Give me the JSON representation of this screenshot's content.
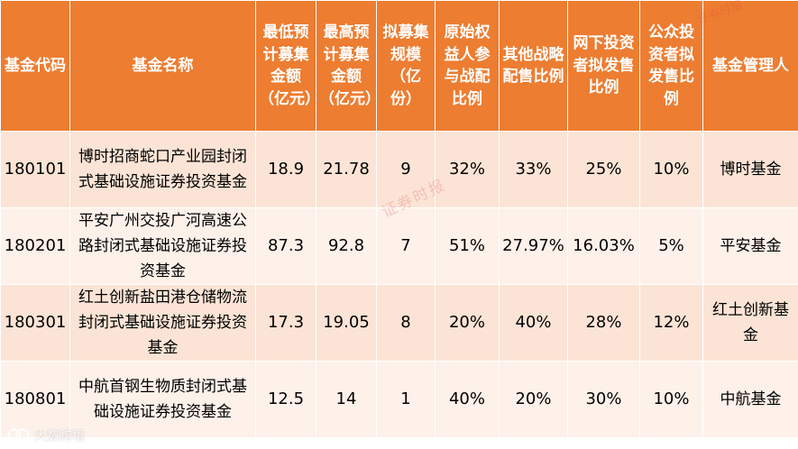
{
  "headers": {
    "code": "基金代码",
    "name": "基金名称",
    "min_raise": "最低预计募集金额（亿元）",
    "max_raise": "最高预计募集金额（亿元）",
    "planned_scale": "拟募集规模（亿份）",
    "original_holder": "原始权益人参与战配比例",
    "other_strategic": "其他战略配售比例",
    "offline": "网下投资者拟发售比例",
    "public": "公众投资者拟发售比例",
    "manager": "基金管理人"
  },
  "rows": [
    {
      "code": "180101",
      "name": "博时招商蛇口产业园封闭式基础设施证券投资基金",
      "min_raise": "18.9",
      "max_raise": "21.78",
      "planned_scale": "9",
      "original_holder": "32%",
      "other_strategic": "33%",
      "offline": "25%",
      "public": "10%",
      "manager": "博时基金"
    },
    {
      "code": "180201",
      "name": "平安广州交投广河高速公路封闭式基础设施证券投资基金",
      "min_raise": "87.3",
      "max_raise": "92.8",
      "planned_scale": "7",
      "original_holder": "51%",
      "other_strategic": "27.97%",
      "offline": "16.03%",
      "public": "5%",
      "manager": "平安基金"
    },
    {
      "code": "180301",
      "name": "红土创新盐田港仓储物流封闭式基础设施证券投资基金",
      "min_raise": "17.3",
      "max_raise": "19.05",
      "planned_scale": "8",
      "original_holder": "20%",
      "other_strategic": "40%",
      "offline": "28%",
      "public": "12%",
      "manager": "红土创新基金"
    },
    {
      "code": "180801",
      "name": "中航首钢生物质封闭式基础设施证券投资基金",
      "min_raise": "12.5",
      "max_raise": "14",
      "planned_scale": "1",
      "original_holder": "40%",
      "other_strategic": "20%",
      "offline": "30%",
      "public": "10%",
      "manager": "中航基金"
    }
  ],
  "watermarks": {
    "top": "证券时报",
    "middle": "证券时报"
  },
  "brand": {
    "text": "大数跨境",
    "icon": "brand-logo-icon"
  },
  "colors": {
    "header_bg": "#ed7d31",
    "header_text": "#ffffff",
    "row_odd": "#fbe4d5",
    "row_even": "#fdf1ea"
  }
}
